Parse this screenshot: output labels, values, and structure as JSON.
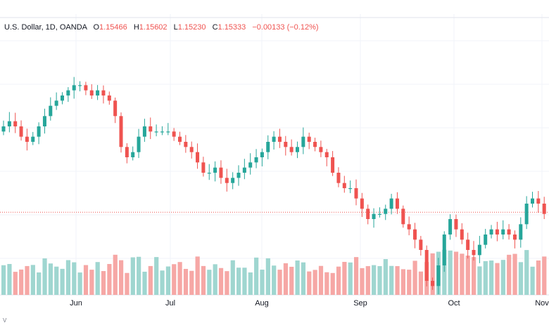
{
  "legend": {
    "symbol": "U.S. Dollar, 1D, OANDA",
    "open_label": "O",
    "open": "1.15466",
    "high_label": "H",
    "high": "1.15602",
    "low_label": "L",
    "low": "1.15230",
    "close_label": "C",
    "close": "1.15333",
    "change": "−0.00133 (−0.12%)"
  },
  "x_axis": {
    "labels": [
      "Jun",
      "Jul",
      "Aug",
      "Sep",
      "Oct",
      "Nov"
    ]
  },
  "corner_text": "V",
  "colors": {
    "up": "#26a69a",
    "down": "#ef5350",
    "up_volume": "#9fd6d0",
    "down_volume": "#f6a7a5",
    "price_line": "#ef5350",
    "grid": "#f0f3fa"
  },
  "chart_data": {
    "type": "candlestick",
    "x_tick_labels": [
      "Jun",
      "Jul",
      "Aug",
      "Sep",
      "Oct",
      "Nov"
    ],
    "price_range": [
      1.14,
      1.185
    ],
    "last_close": 1.15333,
    "approx_close_path": [
      1.17,
      1.171,
      1.17,
      1.168,
      1.167,
      1.168,
      1.17,
      1.172,
      1.174,
      1.175,
      1.176,
      1.177,
      1.178,
      1.178,
      1.177,
      1.176,
      1.177,
      1.176,
      1.175,
      1.172,
      1.166,
      1.164,
      1.165,
      1.168,
      1.17,
      1.169,
      1.169,
      1.169,
      1.169,
      1.168,
      1.167,
      1.166,
      1.165,
      1.163,
      1.161,
      1.161,
      1.162,
      1.16,
      1.159,
      1.16,
      1.161,
      1.162,
      1.163,
      1.164,
      1.165,
      1.167,
      1.168,
      1.167,
      1.166,
      1.165,
      1.166,
      1.168,
      1.167,
      1.166,
      1.165,
      1.164,
      1.161,
      1.159,
      1.158,
      1.158,
      1.156,
      1.154,
      1.152,
      1.153,
      1.153,
      1.154,
      1.156,
      1.154,
      1.151,
      1.15,
      1.148,
      1.146,
      1.14,
      1.139,
      1.143,
      1.149,
      1.152,
      1.15,
      1.148,
      1.146,
      1.145,
      1.147,
      1.149,
      1.15,
      1.149,
      1.15,
      1.149,
      1.148,
      1.151,
      1.155,
      1.156,
      1.155,
      1.153
    ]
  }
}
